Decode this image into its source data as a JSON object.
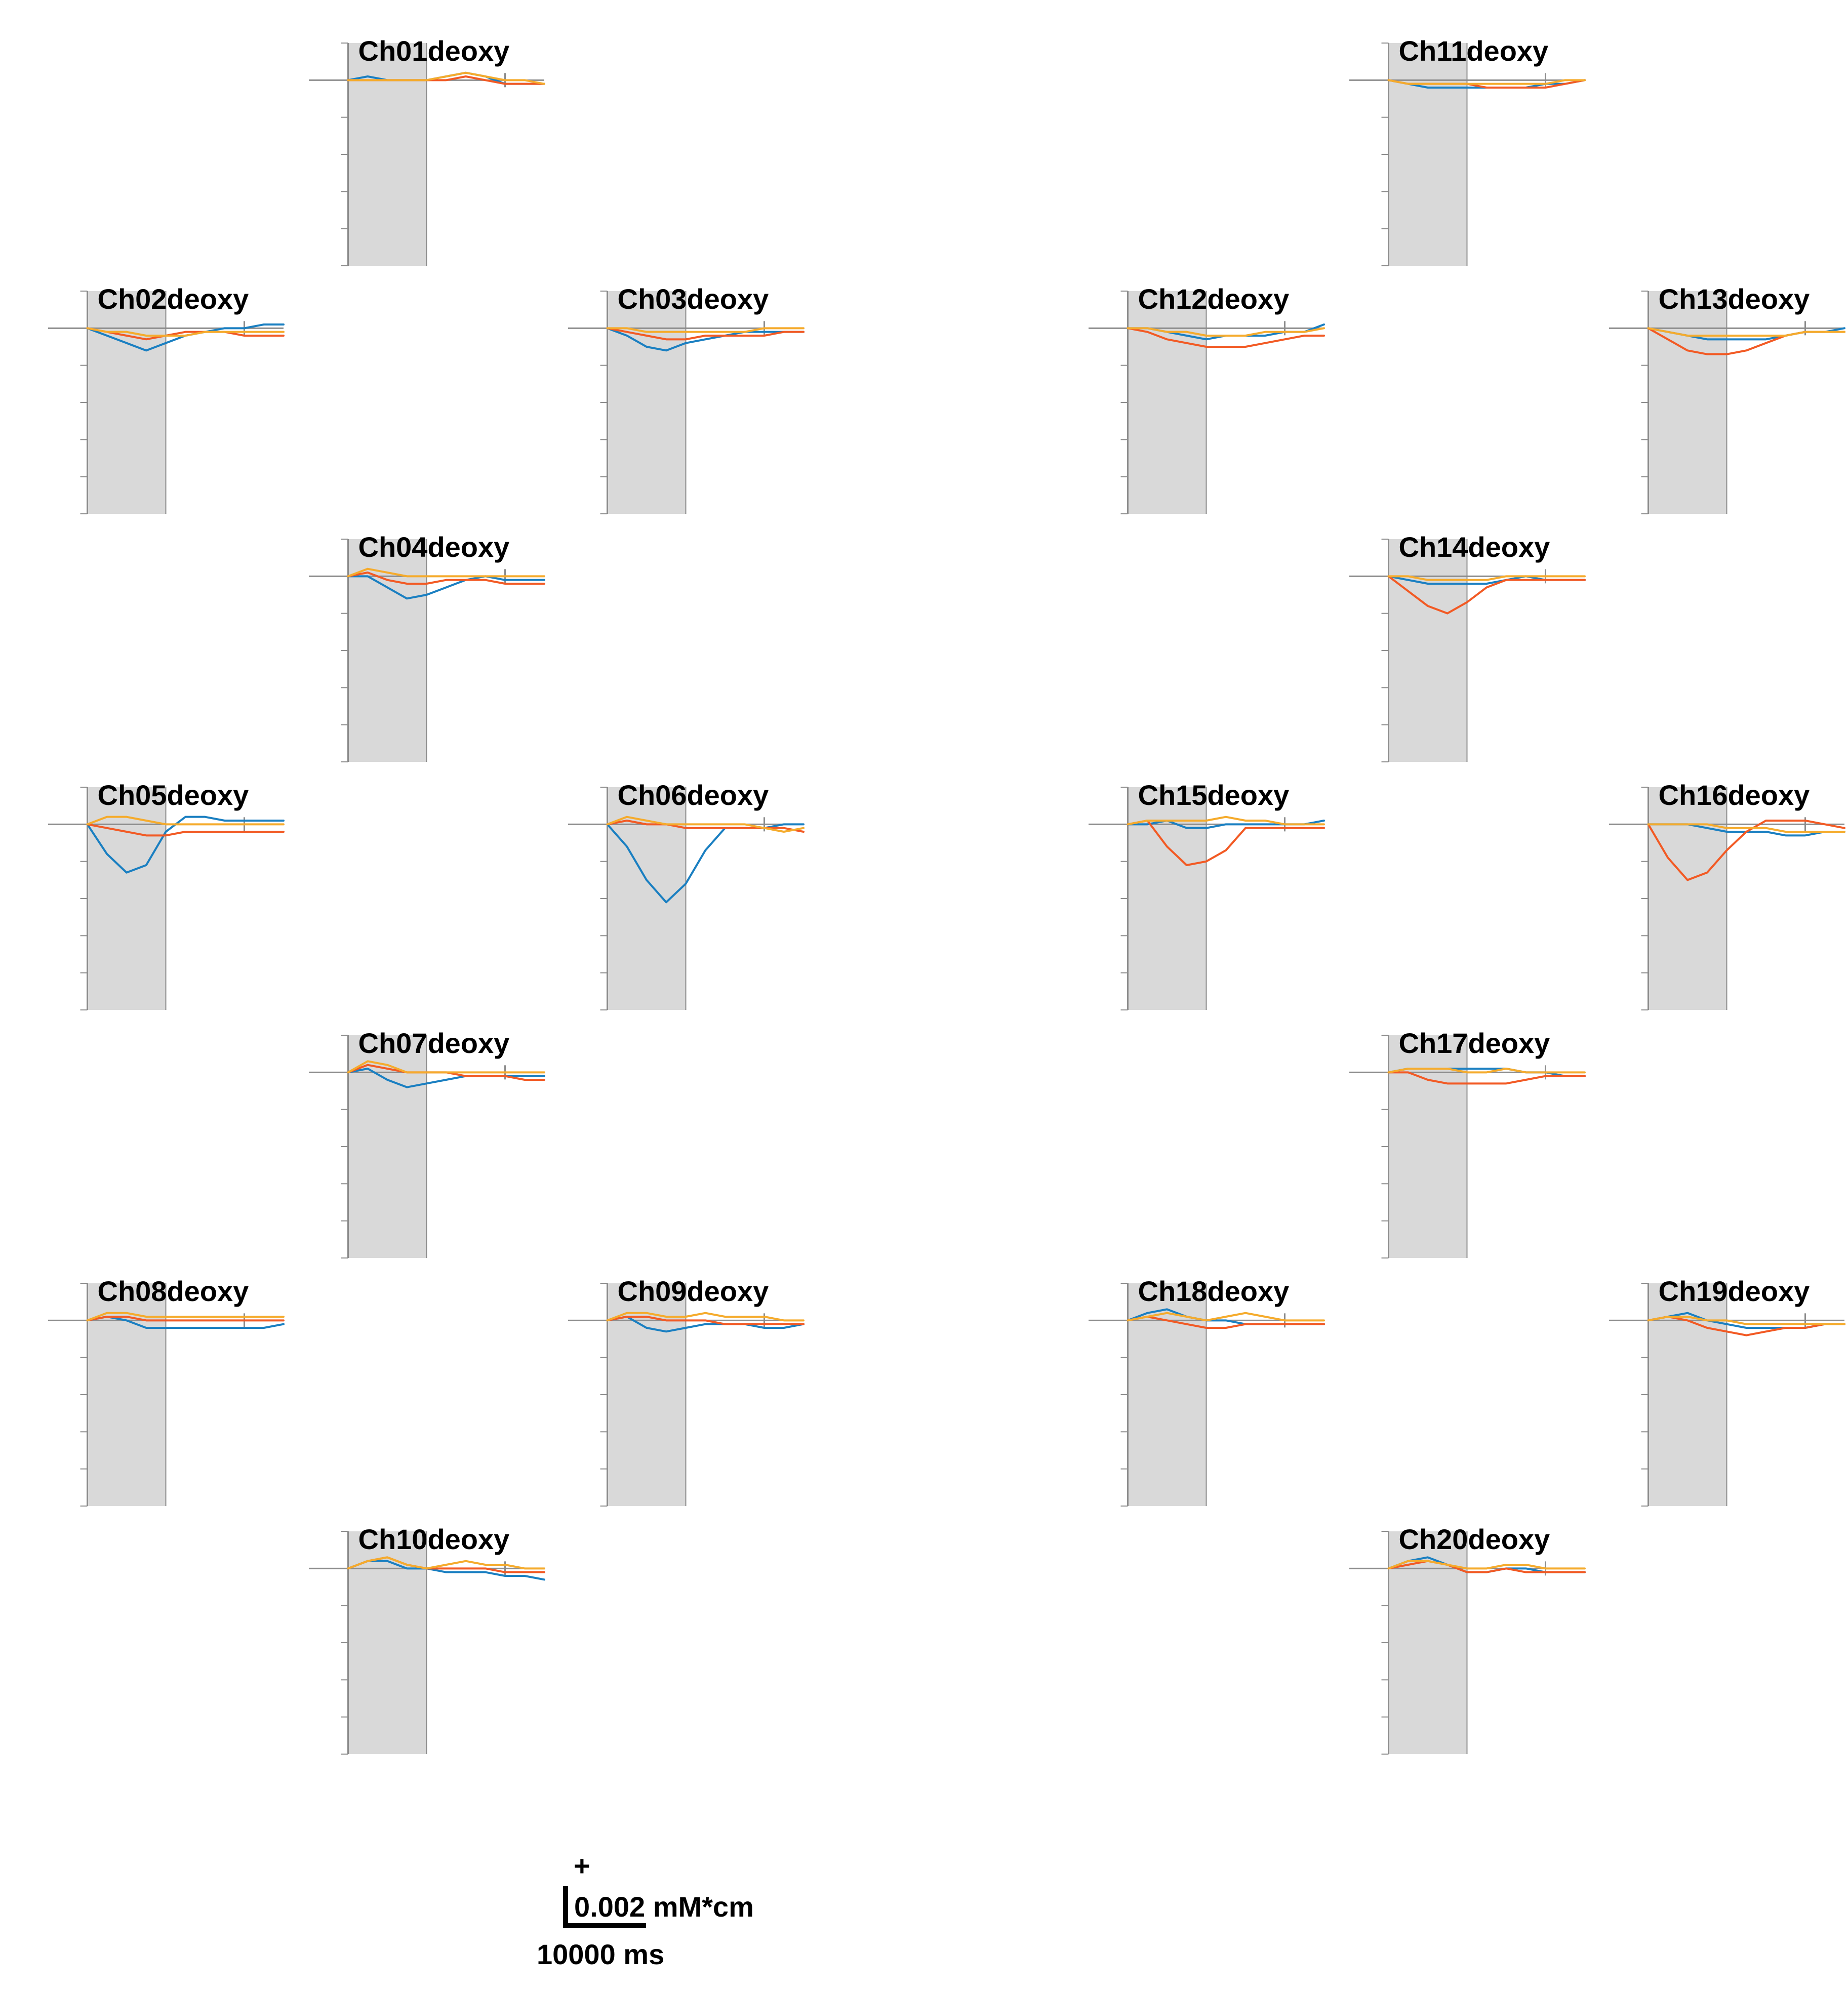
{
  "chart_data": {
    "type": "line",
    "colors": {
      "series_1": "#1a7fc1",
      "series_2": "#f25a24",
      "series_3": "#f5ab2c",
      "shade": "#d9d9d9",
      "axis": "#8c8c8c"
    },
    "x_range_ms": [
      -5000,
      25000
    ],
    "y_range": [
      -0.005,
      0.001
    ],
    "stimulus_window_ms": [
      0,
      10000
    ],
    "x_sample_ms": [
      0,
      2500,
      5000,
      7500,
      10000,
      12500,
      15000,
      17500,
      20000,
      22500,
      25000
    ],
    "panels": [
      {
        "title": "Ch01deoxy",
        "series": [
          {
            "values": [
              0,
              0.0001,
              0,
              0,
              0,
              0.0001,
              0.0002,
              0.0001,
              -0.0001,
              -0.0001,
              -0.0001
            ]
          },
          {
            "values": [
              0,
              0,
              0,
              0,
              0,
              0,
              0.0001,
              0,
              -0.0001,
              -0.0001,
              -0.0001
            ]
          },
          {
            "values": [
              0,
              0,
              0,
              0,
              0,
              0.0001,
              0.0002,
              0.0001,
              0,
              0,
              -0.0001
            ]
          }
        ]
      },
      {
        "title": "Ch02deoxy",
        "series": [
          {
            "values": [
              0,
              -0.0002,
              -0.0004,
              -0.0006,
              -0.0004,
              -0.0002,
              -0.0001,
              0,
              0,
              0.0001,
              0.0001
            ]
          },
          {
            "values": [
              0,
              -0.0001,
              -0.0002,
              -0.0003,
              -0.0002,
              -0.0001,
              -0.0001,
              -0.0001,
              -0.0002,
              -0.0002,
              -0.0002
            ]
          },
          {
            "values": [
              0,
              -0.0001,
              -0.0001,
              -0.0002,
              -0.0002,
              -0.0002,
              -0.0001,
              -0.0001,
              -0.0001,
              -0.0001,
              -0.0001
            ]
          }
        ]
      },
      {
        "title": "Ch03deoxy",
        "series": [
          {
            "values": [
              0,
              -0.0002,
              -0.0005,
              -0.0006,
              -0.0004,
              -0.0003,
              -0.0002,
              -0.0001,
              -0.0001,
              -0.0001,
              -0.0001
            ]
          },
          {
            "values": [
              0,
              -0.0001,
              -0.0002,
              -0.0003,
              -0.0003,
              -0.0002,
              -0.0002,
              -0.0002,
              -0.0002,
              -0.0001,
              -0.0001
            ]
          },
          {
            "values": [
              0,
              0,
              -0.0001,
              -0.0001,
              -0.0001,
              -0.0001,
              -0.0001,
              -0.0001,
              0,
              0,
              0
            ]
          }
        ]
      },
      {
        "title": "Ch04deoxy",
        "series": [
          {
            "values": [
              0,
              0,
              -0.0003,
              -0.0006,
              -0.0005,
              -0.0003,
              -0.0001,
              0,
              -0.0001,
              -0.0001,
              -0.0001
            ]
          },
          {
            "values": [
              0,
              0.0001,
              -0.0001,
              -0.0002,
              -0.0002,
              -0.0001,
              -0.0001,
              -0.0001,
              -0.0002,
              -0.0002,
              -0.0002
            ]
          },
          {
            "values": [
              0,
              0.0002,
              0.0001,
              0,
              0,
              0,
              0,
              0,
              0,
              0,
              0
            ]
          }
        ]
      },
      {
        "title": "Ch05deoxy",
        "series": [
          {
            "values": [
              0,
              -0.0008,
              -0.0013,
              -0.0011,
              -0.0002,
              0.0002,
              0.0002,
              0.0001,
              0.0001,
              0.0001,
              0.0001
            ]
          },
          {
            "values": [
              0,
              -0.0001,
              -0.0002,
              -0.0003,
              -0.0003,
              -0.0002,
              -0.0002,
              -0.0002,
              -0.0002,
              -0.0002,
              -0.0002
            ]
          },
          {
            "values": [
              0,
              0.0002,
              0.0002,
              0.0001,
              0,
              0,
              0,
              0,
              0,
              0,
              0
            ]
          }
        ]
      },
      {
        "title": "Ch06deoxy",
        "series": [
          {
            "values": [
              0,
              -0.0006,
              -0.0015,
              -0.0021,
              -0.0016,
              -0.0007,
              -0.0001,
              -0.0001,
              -0.0001,
              0,
              0
            ]
          },
          {
            "values": [
              0,
              0.0001,
              0,
              0,
              -0.0001,
              -0.0001,
              -0.0001,
              -0.0001,
              -0.0001,
              -0.0001,
              -0.0002
            ]
          },
          {
            "values": [
              0,
              0.0002,
              0.0001,
              0,
              0,
              0,
              0,
              0,
              -0.0001,
              -0.0002,
              -0.0001
            ]
          }
        ]
      },
      {
        "title": "Ch07deoxy",
        "series": [
          {
            "values": [
              0,
              0.0001,
              -0.0002,
              -0.0004,
              -0.0003,
              -0.0002,
              -0.0001,
              -0.0001,
              -0.0001,
              -0.0001,
              -0.0001
            ]
          },
          {
            "values": [
              0,
              0.0002,
              0.0001,
              0,
              0,
              0,
              -0.0001,
              -0.0001,
              -0.0001,
              -0.0002,
              -0.0002
            ]
          },
          {
            "values": [
              0,
              0.0003,
              0.0002,
              0,
              0,
              0,
              0,
              0,
              0,
              0,
              0
            ]
          }
        ]
      },
      {
        "title": "Ch08deoxy",
        "series": [
          {
            "values": [
              0,
              0.0001,
              0,
              -0.0002,
              -0.0002,
              -0.0002,
              -0.0002,
              -0.0002,
              -0.0002,
              -0.0002,
              -0.0001
            ]
          },
          {
            "values": [
              0,
              0.0001,
              0.0001,
              0,
              0,
              0,
              0,
              0,
              0,
              0,
              0
            ]
          },
          {
            "values": [
              0,
              0.0002,
              0.0002,
              0.0001,
              0.0001,
              0.0001,
              0.0001,
              0.0001,
              0.0001,
              0.0001,
              0.0001
            ]
          }
        ]
      },
      {
        "title": "Ch09deoxy",
        "series": [
          {
            "values": [
              0,
              0.0001,
              -0.0002,
              -0.0003,
              -0.0002,
              -0.0001,
              -0.0001,
              -0.0001,
              -0.0002,
              -0.0002,
              -0.0001
            ]
          },
          {
            "values": [
              0,
              0.0001,
              0.0001,
              0,
              0,
              0,
              -0.0001,
              -0.0001,
              -0.0001,
              -0.0001,
              -0.0001
            ]
          },
          {
            "values": [
              0,
              0.0002,
              0.0002,
              0.0001,
              0.0001,
              0.0002,
              0.0001,
              0.0001,
              0.0001,
              0,
              0
            ]
          }
        ]
      },
      {
        "title": "Ch10deoxy",
        "series": [
          {
            "values": [
              0,
              0.0002,
              0.0002,
              0,
              0,
              -0.0001,
              -0.0001,
              -0.0001,
              -0.0002,
              -0.0002,
              -0.0003
            ]
          },
          {
            "values": [
              0,
              0.0002,
              0.0003,
              0.0001,
              0,
              0,
              0,
              0,
              -0.0001,
              -0.0001,
              -0.0001
            ]
          },
          {
            "values": [
              0,
              0.0002,
              0.0003,
              0.0001,
              0,
              0.0001,
              0.0002,
              0.0001,
              0.0001,
              0,
              0
            ]
          }
        ]
      },
      {
        "title": "Ch11deoxy",
        "series": [
          {
            "values": [
              0,
              -0.0001,
              -0.0002,
              -0.0002,
              -0.0002,
              -0.0002,
              -0.0002,
              -0.0002,
              -0.0001,
              -0.0001,
              0
            ]
          },
          {
            "values": [
              0,
              -0.0001,
              -0.0001,
              -0.0001,
              -0.0001,
              -0.0002,
              -0.0002,
              -0.0002,
              -0.0002,
              -0.0001,
              0
            ]
          },
          {
            "values": [
              0,
              -0.0001,
              -0.0001,
              -0.0001,
              -0.0001,
              -0.0001,
              -0.0001,
              -0.0001,
              -0.0001,
              0,
              0
            ]
          }
        ]
      },
      {
        "title": "Ch12deoxy",
        "series": [
          {
            "values": [
              0,
              0,
              -0.0001,
              -0.0002,
              -0.0003,
              -0.0002,
              -0.0002,
              -0.0002,
              -0.0001,
              -0.0001,
              0.0001
            ]
          },
          {
            "values": [
              0,
              -0.0001,
              -0.0003,
              -0.0004,
              -0.0005,
              -0.0005,
              -0.0005,
              -0.0004,
              -0.0003,
              -0.0002,
              -0.0002
            ]
          },
          {
            "values": [
              0,
              0,
              -0.0001,
              -0.0001,
              -0.0002,
              -0.0002,
              -0.0002,
              -0.0001,
              -0.0001,
              -0.0001,
              0
            ]
          }
        ]
      },
      {
        "title": "Ch13deoxy",
        "series": [
          {
            "values": [
              0,
              -0.0001,
              -0.0002,
              -0.0003,
              -0.0003,
              -0.0003,
              -0.0003,
              -0.0002,
              -0.0001,
              -0.0001,
              0
            ]
          },
          {
            "values": [
              0,
              -0.0003,
              -0.0006,
              -0.0007,
              -0.0007,
              -0.0006,
              -0.0004,
              -0.0002,
              -0.0001,
              -0.0001,
              -0.0001
            ]
          },
          {
            "values": [
              0,
              -0.0001,
              -0.0002,
              -0.0002,
              -0.0002,
              -0.0002,
              -0.0002,
              -0.0002,
              -0.0001,
              -0.0001,
              -0.0001
            ]
          }
        ]
      },
      {
        "title": "Ch14deoxy",
        "series": [
          {
            "values": [
              0,
              -0.0001,
              -0.0002,
              -0.0002,
              -0.0002,
              -0.0002,
              -0.0001,
              0,
              -0.0001,
              -0.0001,
              -0.0001
            ]
          },
          {
            "values": [
              0,
              -0.0004,
              -0.0008,
              -0.001,
              -0.0007,
              -0.0003,
              -0.0001,
              -0.0001,
              -0.0001,
              -0.0001,
              -0.0001
            ]
          },
          {
            "values": [
              0,
              0,
              -0.0001,
              -0.0001,
              -0.0001,
              -0.0001,
              0,
              0,
              0,
              0,
              0
            ]
          }
        ]
      },
      {
        "title": "Ch15deoxy",
        "series": [
          {
            "values": [
              0,
              0,
              0.0001,
              -0.0001,
              -0.0001,
              0,
              0,
              0,
              0,
              0,
              0.0001
            ]
          },
          {
            "values": [
              0,
              0.0001,
              -0.0006,
              -0.0011,
              -0.001,
              -0.0007,
              -0.0001,
              -0.0001,
              -0.0001,
              -0.0001,
              -0.0001
            ]
          },
          {
            "values": [
              0,
              0.0001,
              0.0001,
              0.0001,
              0.0001,
              0.0002,
              0.0001,
              0.0001,
              0,
              0,
              0
            ]
          }
        ]
      },
      {
        "title": "Ch16deoxy",
        "series": [
          {
            "values": [
              0,
              0,
              0,
              -0.0001,
              -0.0002,
              -0.0002,
              -0.0002,
              -0.0003,
              -0.0003,
              -0.0002,
              -0.0002
            ]
          },
          {
            "values": [
              0,
              -0.0009,
              -0.0015,
              -0.0013,
              -0.0007,
              -0.0002,
              0.0001,
              0.0001,
              0.0001,
              0,
              -0.0001
            ]
          },
          {
            "values": [
              0,
              0,
              0,
              0,
              -0.0001,
              -0.0001,
              -0.0001,
              -0.0002,
              -0.0002,
              -0.0002,
              -0.0002
            ]
          }
        ]
      },
      {
        "title": "Ch17deoxy",
        "series": [
          {
            "values": [
              0,
              0.0001,
              0.0001,
              0.0001,
              0.0001,
              0.0001,
              0.0001,
              0,
              0,
              -0.0001,
              -0.0001
            ]
          },
          {
            "values": [
              0,
              0,
              -0.0002,
              -0.0003,
              -0.0003,
              -0.0003,
              -0.0003,
              -0.0002,
              -0.0001,
              -0.0001,
              -0.0001
            ]
          },
          {
            "values": [
              0,
              0.0001,
              0.0001,
              0.0001,
              0,
              0,
              0.0001,
              0,
              0,
              0,
              0
            ]
          }
        ]
      },
      {
        "title": "Ch18deoxy",
        "series": [
          {
            "values": [
              0,
              0.0002,
              0.0003,
              0.0001,
              0,
              0,
              -0.0001,
              -0.0001,
              -0.0001,
              -0.0001,
              -0.0001
            ]
          },
          {
            "values": [
              0,
              0.0001,
              0,
              -0.0001,
              -0.0002,
              -0.0002,
              -0.0001,
              -0.0001,
              -0.0001,
              -0.0001,
              -0.0001
            ]
          },
          {
            "values": [
              0,
              0.0001,
              0.0002,
              0.0001,
              0,
              0.0001,
              0.0002,
              0.0001,
              0,
              0,
              0
            ]
          }
        ]
      },
      {
        "title": "Ch19deoxy",
        "series": [
          {
            "values": [
              0,
              0.0001,
              0.0002,
              0,
              -0.0001,
              -0.0002,
              -0.0002,
              -0.0002,
              -0.0002,
              -0.0001,
              -0.0001
            ]
          },
          {
            "values": [
              0,
              0.0001,
              0,
              -0.0002,
              -0.0003,
              -0.0004,
              -0.0003,
              -0.0002,
              -0.0002,
              -0.0001,
              -0.0001
            ]
          },
          {
            "values": [
              0,
              0.0001,
              0.0001,
              0,
              0,
              -0.0001,
              -0.0001,
              -0.0001,
              -0.0001,
              -0.0001,
              -0.0001
            ]
          }
        ]
      },
      {
        "title": "Ch20deoxy",
        "series": [
          {
            "values": [
              0,
              0.0002,
              0.0003,
              0.0001,
              -0.0001,
              -0.0001,
              0,
              0,
              -0.0001,
              -0.0001,
              -0.0001
            ]
          },
          {
            "values": [
              0,
              0.0001,
              0.0002,
              0.0001,
              -0.0001,
              -0.0001,
              0,
              -0.0001,
              -0.0001,
              -0.0001,
              -0.0001
            ]
          },
          {
            "values": [
              0,
              0.0002,
              0.0002,
              0.0001,
              0,
              0,
              0.0001,
              0.0001,
              0,
              0,
              0
            ]
          }
        ]
      }
    ],
    "scale_bar": {
      "polarity_label": "+",
      "y_label": "0.002 mM*cm",
      "x_label": "10000 ms",
      "y_value": 0.002,
      "x_value_ms": 10000
    }
  }
}
